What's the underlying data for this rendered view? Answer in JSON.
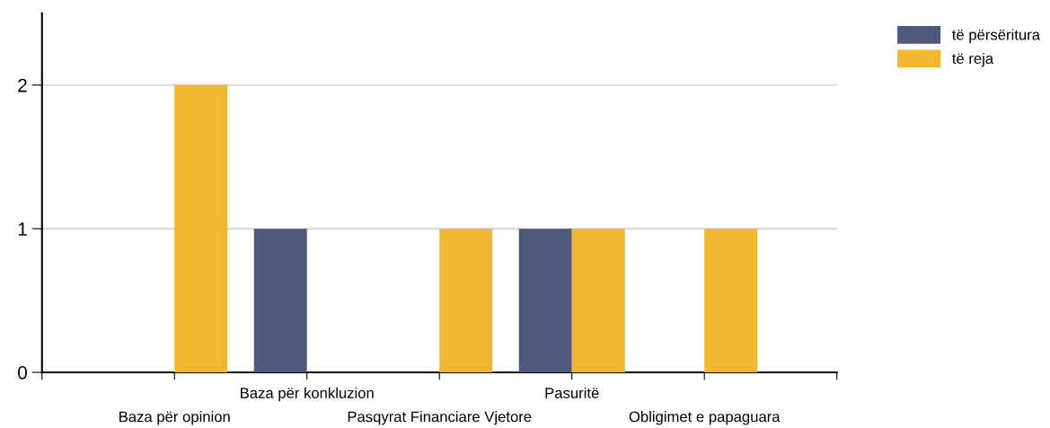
{
  "chart_data": {
    "type": "bar",
    "categories": [
      "Baza për opinion",
      "Baza për konkluzion",
      "Pasqyrat Financiare Vjetore",
      "Pasuritë",
      "Obligimet e papaguara"
    ],
    "series": [
      {
        "name": "të përsëritura",
        "color": "#4f597c",
        "values": [
          0,
          1,
          0,
          1,
          0
        ]
      },
      {
        "name": "të reja",
        "color": "#f2b731",
        "values": [
          2,
          0,
          1,
          1,
          1
        ]
      }
    ],
    "ylim": [
      0,
      2.5
    ],
    "yticks": [
      0,
      1,
      2
    ],
    "grid": "y",
    "legend": "top right"
  }
}
